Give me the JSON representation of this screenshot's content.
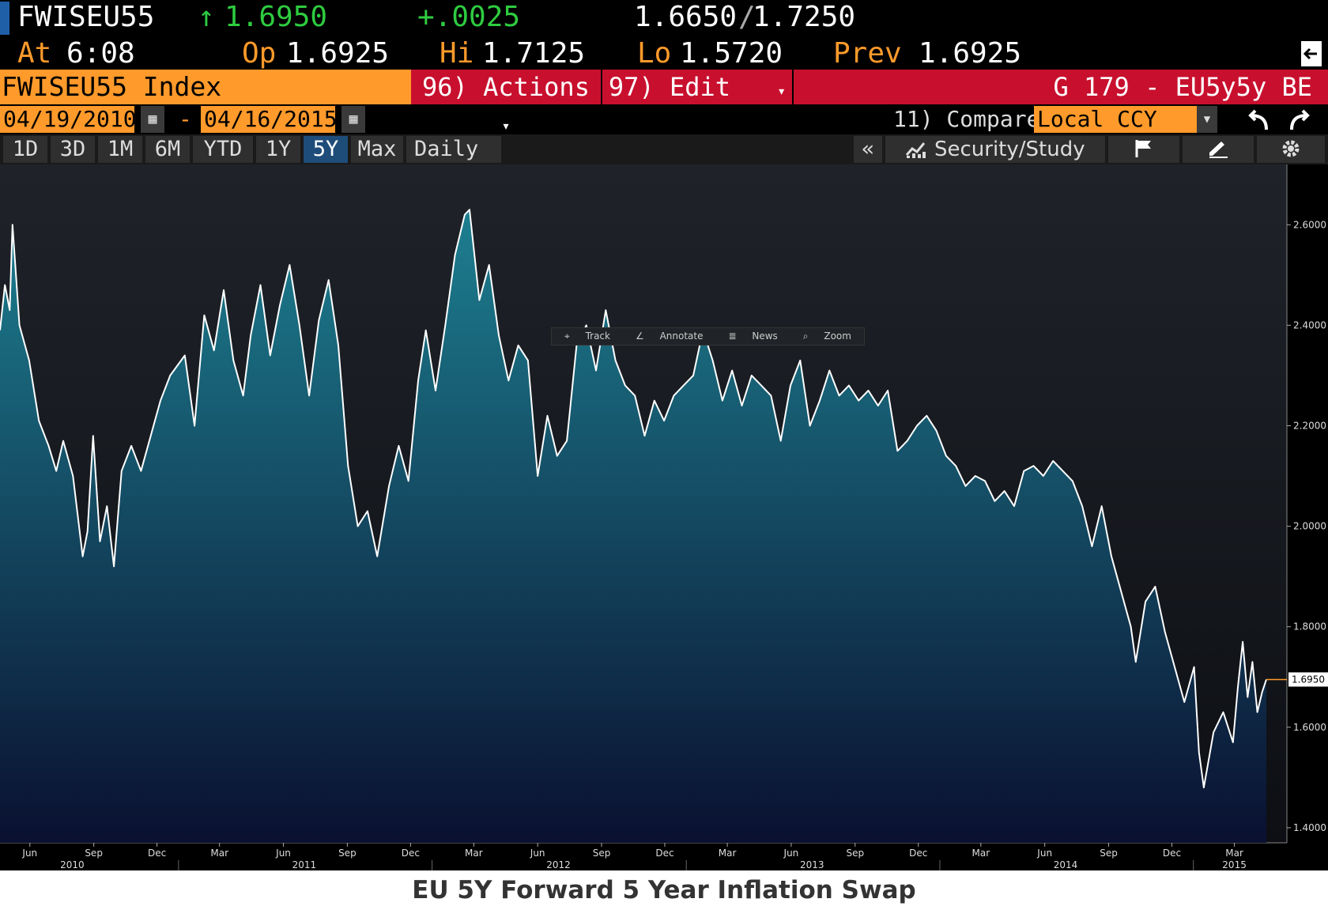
{
  "quote": {
    "ticker": "FWISEU55",
    "last": "1.6950",
    "last_arrow": "↑",
    "change": "+.0025",
    "bid": "1.6650",
    "ask": "1.7250",
    "bid_ask_sep": "/",
    "at_label": "At",
    "at_time": "6:08",
    "open_label": "Op",
    "open": "1.6925",
    "high_label": "Hi",
    "high": "1.7125",
    "low_label": "Lo",
    "low": "1.5720",
    "prev_label": "Prev",
    "prev": "1.6925"
  },
  "titlebar": {
    "security": "FWISEU55 Index",
    "actions": "96) Actions",
    "edit": "97) Edit",
    "page": "G 179 - EU5y5y BE"
  },
  "datebar": {
    "start_date": "04/19/2010",
    "separator": "-",
    "end_date": "04/16/2015",
    "compare": "11) Compare",
    "currency": "Local CCY"
  },
  "range_buttons": [
    "1D",
    "3D",
    "1M",
    "6M",
    "YTD",
    "1Y",
    "5Y",
    "Max"
  ],
  "active_range": "5Y",
  "frequency": "Daily",
  "toolbar": {
    "collapse": "«",
    "security_study": "Security/Study"
  },
  "chart_tools": [
    "Track",
    "Annotate",
    "News",
    "Zoom"
  ],
  "caption": "EU 5Y Forward 5 Year Inflation Swap",
  "colors": {
    "accent_orange": "#ff9a2b",
    "action_red": "#c8102e",
    "up_green": "#2ecc40",
    "area_top": "#1d7f90",
    "area_bottom": "#0a1030",
    "line": "#ffffff"
  },
  "chart_data": {
    "type": "area",
    "last_value_label": "1.6950",
    "ylim": [
      1.37,
      2.72
    ],
    "yticks": [
      1.4,
      1.6,
      1.8,
      2.0,
      2.2,
      2.4,
      2.6
    ],
    "ytick_labels": [
      "1.4000",
      "1.6000",
      "1.8000",
      "2.0000",
      "2.2000",
      "2.4000",
      "2.6000"
    ],
    "xlim": [
      "2010-04-19",
      "2015-04-16"
    ],
    "month_ticks": [
      {
        "date": "2010-06-01",
        "label": "Jun"
      },
      {
        "date": "2010-09-01",
        "label": "Sep"
      },
      {
        "date": "2010-12-01",
        "label": "Dec"
      },
      {
        "date": "2011-03-01",
        "label": "Mar"
      },
      {
        "date": "2011-06-01",
        "label": "Jun"
      },
      {
        "date": "2011-09-01",
        "label": "Sep"
      },
      {
        "date": "2011-12-01",
        "label": "Dec"
      },
      {
        "date": "2012-03-01",
        "label": "Mar"
      },
      {
        "date": "2012-06-01",
        "label": "Jun"
      },
      {
        "date": "2012-09-01",
        "label": "Sep"
      },
      {
        "date": "2012-12-01",
        "label": "Dec"
      },
      {
        "date": "2013-03-01",
        "label": "Mar"
      },
      {
        "date": "2013-06-01",
        "label": "Jun"
      },
      {
        "date": "2013-09-01",
        "label": "Sep"
      },
      {
        "date": "2013-12-01",
        "label": "Dec"
      },
      {
        "date": "2014-03-01",
        "label": "Mar"
      },
      {
        "date": "2014-06-01",
        "label": "Jun"
      },
      {
        "date": "2014-09-01",
        "label": "Sep"
      },
      {
        "date": "2014-12-01",
        "label": "Dec"
      },
      {
        "date": "2015-03-01",
        "label": "Mar"
      }
    ],
    "year_labels": [
      {
        "date": "2010-08-01",
        "label": "2010"
      },
      {
        "date": "2011-07-01",
        "label": "2011"
      },
      {
        "date": "2012-07-01",
        "label": "2012"
      },
      {
        "date": "2013-07-01",
        "label": "2013"
      },
      {
        "date": "2014-07-01",
        "label": "2014"
      },
      {
        "date": "2015-03-01",
        "label": "2015"
      }
    ],
    "year_boundaries": [
      "2011-01-01",
      "2012-01-01",
      "2013-01-01",
      "2014-01-01",
      "2015-01-01"
    ],
    "points": [
      [
        "2010-04-19",
        2.39
      ],
      [
        "2010-04-26",
        2.48
      ],
      [
        "2010-05-03",
        2.43
      ],
      [
        "2010-05-07",
        2.6
      ],
      [
        "2010-05-17",
        2.4
      ],
      [
        "2010-05-31",
        2.33
      ],
      [
        "2010-06-14",
        2.21
      ],
      [
        "2010-06-28",
        2.16
      ],
      [
        "2010-07-09",
        2.11
      ],
      [
        "2010-07-19",
        2.17
      ],
      [
        "2010-08-02",
        2.1
      ],
      [
        "2010-08-16",
        1.94
      ],
      [
        "2010-08-23",
        1.99
      ],
      [
        "2010-08-31",
        2.18
      ],
      [
        "2010-09-10",
        1.97
      ],
      [
        "2010-09-20",
        2.04
      ],
      [
        "2010-09-30",
        1.92
      ],
      [
        "2010-10-11",
        2.11
      ],
      [
        "2010-10-25",
        2.16
      ],
      [
        "2010-11-08",
        2.11
      ],
      [
        "2010-11-22",
        2.18
      ],
      [
        "2010-12-06",
        2.25
      ],
      [
        "2010-12-20",
        2.3
      ],
      [
        "2011-01-10",
        2.34
      ],
      [
        "2011-01-24",
        2.2
      ],
      [
        "2011-02-07",
        2.42
      ],
      [
        "2011-02-21",
        2.35
      ],
      [
        "2011-03-07",
        2.47
      ],
      [
        "2011-03-21",
        2.33
      ],
      [
        "2011-04-04",
        2.26
      ],
      [
        "2011-04-15",
        2.38
      ],
      [
        "2011-04-29",
        2.48
      ],
      [
        "2011-05-13",
        2.34
      ],
      [
        "2011-05-27",
        2.44
      ],
      [
        "2011-06-10",
        2.52
      ],
      [
        "2011-06-24",
        2.4
      ],
      [
        "2011-07-08",
        2.26
      ],
      [
        "2011-07-22",
        2.41
      ],
      [
        "2011-08-05",
        2.49
      ],
      [
        "2011-08-19",
        2.36
      ],
      [
        "2011-09-02",
        2.12
      ],
      [
        "2011-09-16",
        2.0
      ],
      [
        "2011-09-30",
        2.03
      ],
      [
        "2011-10-14",
        1.94
      ],
      [
        "2011-10-31",
        2.08
      ],
      [
        "2011-11-14",
        2.16
      ],
      [
        "2011-11-28",
        2.09
      ],
      [
        "2011-12-12",
        2.29
      ],
      [
        "2011-12-23",
        2.39
      ],
      [
        "2012-01-06",
        2.27
      ],
      [
        "2012-01-20",
        2.4
      ],
      [
        "2012-02-03",
        2.54
      ],
      [
        "2012-02-17",
        2.62
      ],
      [
        "2012-02-24",
        2.63
      ],
      [
        "2012-03-09",
        2.45
      ],
      [
        "2012-03-23",
        2.52
      ],
      [
        "2012-04-06",
        2.38
      ],
      [
        "2012-04-20",
        2.29
      ],
      [
        "2012-05-04",
        2.36
      ],
      [
        "2012-05-18",
        2.33
      ],
      [
        "2012-06-01",
        2.1
      ],
      [
        "2012-06-15",
        2.22
      ],
      [
        "2012-06-29",
        2.14
      ],
      [
        "2012-07-13",
        2.17
      ],
      [
        "2012-07-27",
        2.36
      ],
      [
        "2012-08-10",
        2.4
      ],
      [
        "2012-08-24",
        2.31
      ],
      [
        "2012-09-07",
        2.43
      ],
      [
        "2012-09-21",
        2.33
      ],
      [
        "2012-10-05",
        2.28
      ],
      [
        "2012-10-19",
        2.26
      ],
      [
        "2012-11-02",
        2.18
      ],
      [
        "2012-11-16",
        2.25
      ],
      [
        "2012-11-30",
        2.21
      ],
      [
        "2012-12-14",
        2.26
      ],
      [
        "2012-12-28",
        2.28
      ],
      [
        "2013-01-11",
        2.3
      ],
      [
        "2013-01-25",
        2.39
      ],
      [
        "2013-02-08",
        2.33
      ],
      [
        "2013-02-22",
        2.25
      ],
      [
        "2013-03-08",
        2.31
      ],
      [
        "2013-03-22",
        2.24
      ],
      [
        "2013-04-05",
        2.3
      ],
      [
        "2013-04-19",
        2.28
      ],
      [
        "2013-05-03",
        2.26
      ],
      [
        "2013-05-17",
        2.17
      ],
      [
        "2013-05-31",
        2.28
      ],
      [
        "2013-06-14",
        2.33
      ],
      [
        "2013-06-28",
        2.2
      ],
      [
        "2013-07-12",
        2.25
      ],
      [
        "2013-07-26",
        2.31
      ],
      [
        "2013-08-09",
        2.26
      ],
      [
        "2013-08-23",
        2.28
      ],
      [
        "2013-09-06",
        2.25
      ],
      [
        "2013-09-20",
        2.27
      ],
      [
        "2013-10-04",
        2.24
      ],
      [
        "2013-10-18",
        2.27
      ],
      [
        "2013-11-01",
        2.15
      ],
      [
        "2013-11-15",
        2.17
      ],
      [
        "2013-11-29",
        2.2
      ],
      [
        "2013-12-13",
        2.22
      ],
      [
        "2013-12-27",
        2.19
      ],
      [
        "2014-01-10",
        2.14
      ],
      [
        "2014-01-24",
        2.12
      ],
      [
        "2014-02-07",
        2.08
      ],
      [
        "2014-02-21",
        2.1
      ],
      [
        "2014-03-07",
        2.09
      ],
      [
        "2014-03-21",
        2.05
      ],
      [
        "2014-04-04",
        2.07
      ],
      [
        "2014-04-18",
        2.04
      ],
      [
        "2014-05-02",
        2.11
      ],
      [
        "2014-05-16",
        2.12
      ],
      [
        "2014-05-30",
        2.1
      ],
      [
        "2014-06-13",
        2.13
      ],
      [
        "2014-06-27",
        2.11
      ],
      [
        "2014-07-11",
        2.09
      ],
      [
        "2014-07-25",
        2.04
      ],
      [
        "2014-08-08",
        1.96
      ],
      [
        "2014-08-22",
        2.04
      ],
      [
        "2014-09-05",
        1.94
      ],
      [
        "2014-09-19",
        1.87
      ],
      [
        "2014-10-03",
        1.8
      ],
      [
        "2014-10-10",
        1.73
      ],
      [
        "2014-10-24",
        1.85
      ],
      [
        "2014-11-07",
        1.88
      ],
      [
        "2014-11-21",
        1.79
      ],
      [
        "2014-12-05",
        1.72
      ],
      [
        "2014-12-19",
        1.65
      ],
      [
        "2015-01-02",
        1.72
      ],
      [
        "2015-01-09",
        1.55
      ],
      [
        "2015-01-16",
        1.48
      ],
      [
        "2015-01-30",
        1.59
      ],
      [
        "2015-02-13",
        1.63
      ],
      [
        "2015-02-27",
        1.57
      ],
      [
        "2015-03-06",
        1.68
      ],
      [
        "2015-03-13",
        1.77
      ],
      [
        "2015-03-20",
        1.66
      ],
      [
        "2015-03-27",
        1.73
      ],
      [
        "2015-04-03",
        1.63
      ],
      [
        "2015-04-10",
        1.67
      ],
      [
        "2015-04-16",
        1.695
      ]
    ]
  }
}
